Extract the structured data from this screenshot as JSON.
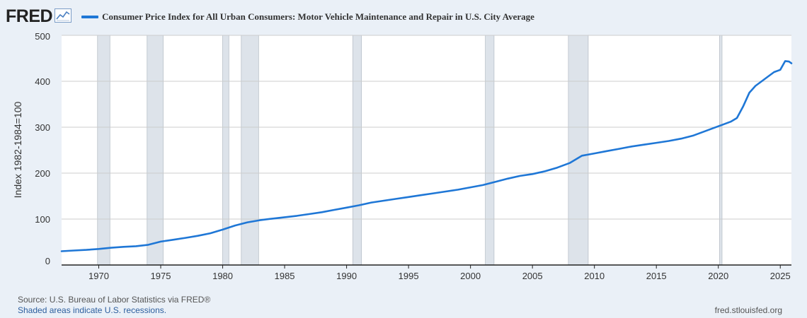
{
  "header": {
    "logo_text": "FRED",
    "logo_icon": "line-chart-icon",
    "series_title": "Consumer Price Index for All Urban Consumers: Motor Vehicle Maintenance and Repair in U.S. City Average"
  },
  "footer": {
    "source": "Source: U.S. Bureau of Labor Statistics via FRED®",
    "shaded_note": "Shaded areas indicate U.S. recessions.",
    "site": "fred.stlouisfed.org"
  },
  "colors": {
    "line": "#1f77d6",
    "recession": "#dde3ea",
    "grid": "#cccccc",
    "background": "#eaf0f7",
    "plot_background": "#ffffff"
  },
  "chart_data": {
    "type": "line",
    "title": "Consumer Price Index for All Urban Consumers: Motor Vehicle Maintenance and Repair in U.S. City Average",
    "xlabel": "",
    "ylabel": "Index 1982-1984=100",
    "xlim": [
      1967.0,
      2025.9
    ],
    "ylim": [
      0,
      500
    ],
    "x_ticks": [
      1970,
      1975,
      1980,
      1985,
      1990,
      1995,
      2000,
      2005,
      2010,
      2015,
      2020,
      2025
    ],
    "y_ticks": [
      0,
      100,
      200,
      300,
      400,
      500
    ],
    "grid": true,
    "recessions": [
      [
        1969.9,
        1970.9
      ],
      [
        1973.9,
        1975.2
      ],
      [
        1980.0,
        1980.5
      ],
      [
        1981.5,
        1982.9
      ],
      [
        1990.5,
        1991.2
      ],
      [
        2001.2,
        2001.9
      ],
      [
        2007.9,
        2009.5
      ],
      [
        2020.1,
        2020.3
      ]
    ],
    "series": [
      {
        "name": "Consumer Price Index for All Urban Consumers: Motor Vehicle Maintenance and Repair in U.S. City Average",
        "x": [
          1967,
          1968,
          1969,
          1970,
          1971,
          1972,
          1973,
          1974,
          1975,
          1976,
          1977,
          1978,
          1979,
          1980,
          1981,
          1982,
          1983,
          1984,
          1985,
          1986,
          1987,
          1988,
          1989,
          1990,
          1991,
          1992,
          1993,
          1994,
          1995,
          1996,
          1997,
          1998,
          1999,
          2000,
          2001,
          2002,
          2003,
          2004,
          2005,
          2006,
          2007,
          2008,
          2009,
          2010,
          2011,
          2012,
          2013,
          2014,
          2015,
          2016,
          2017,
          2018,
          2019,
          2020,
          2021,
          2021.5,
          2022,
          2022.5,
          2023,
          2023.5,
          2024,
          2024.5,
          2025,
          2025.4,
          2025.7,
          2025.9
        ],
        "values": [
          30,
          31.5,
          33,
          35,
          37.5,
          39.5,
          41,
          44,
          51,
          55,
          59,
          63.5,
          69,
          77,
          86,
          93,
          97.5,
          101,
          104,
          107,
          111,
          115,
          120,
          125,
          130,
          136,
          140,
          144,
          148,
          152,
          156,
          160,
          164,
          169,
          174,
          181,
          188,
          194,
          198,
          204,
          212,
          222,
          238,
          243,
          248,
          253,
          258,
          262,
          266,
          270,
          275,
          282,
          292,
          302,
          312,
          320,
          345,
          375,
          390,
          400,
          410,
          420,
          425,
          444,
          443,
          439
        ]
      }
    ]
  }
}
